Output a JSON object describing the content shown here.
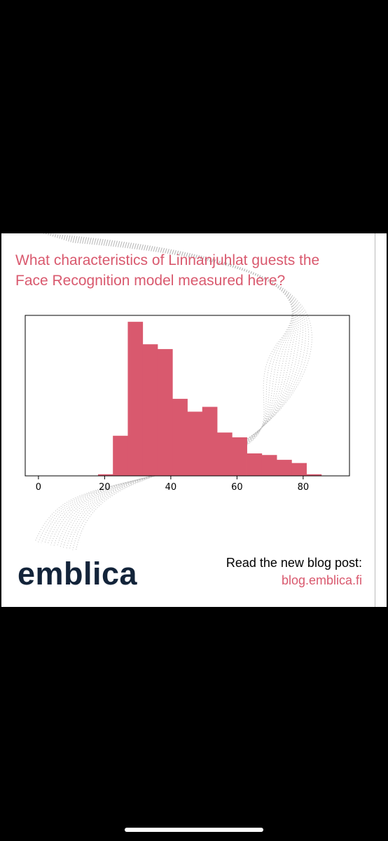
{
  "headline": {
    "line1": "What characteristics of Linnanjuhlat guests the",
    "line2": "Face Recognition model measured here?"
  },
  "brand": {
    "logo_text": "emblica"
  },
  "cta": {
    "text": "Read the new blog post:",
    "link": "blog.emblica.fi"
  },
  "colors": {
    "accent": "#d9596e",
    "logo": "#13243a",
    "background": "#ffffff",
    "frame": "#000000"
  },
  "chart_data": {
    "type": "bar",
    "title": "",
    "xlabel": "",
    "ylabel": "",
    "xlim": [
      -4,
      94
    ],
    "ylim": [
      0,
      100
    ],
    "xticks": [
      0,
      20,
      40,
      60,
      80
    ],
    "bins": [
      {
        "x0": 18.0,
        "x1": 22.5,
        "value": 1
      },
      {
        "x0": 22.5,
        "x1": 27.0,
        "value": 25
      },
      {
        "x0": 27.0,
        "x1": 31.5,
        "value": 96
      },
      {
        "x0": 31.5,
        "x1": 36.0,
        "value": 82
      },
      {
        "x0": 36.0,
        "x1": 40.5,
        "value": 79
      },
      {
        "x0": 40.5,
        "x1": 45.0,
        "value": 48
      },
      {
        "x0": 45.0,
        "x1": 49.5,
        "value": 40
      },
      {
        "x0": 49.5,
        "x1": 54.0,
        "value": 43
      },
      {
        "x0": 54.0,
        "x1": 58.5,
        "value": 27
      },
      {
        "x0": 58.5,
        "x1": 63.0,
        "value": 24
      },
      {
        "x0": 63.0,
        "x1": 67.5,
        "value": 14
      },
      {
        "x0": 67.5,
        "x1": 72.0,
        "value": 13
      },
      {
        "x0": 72.0,
        "x1": 76.5,
        "value": 10
      },
      {
        "x0": 76.5,
        "x1": 81.0,
        "value": 8
      },
      {
        "x0": 81.0,
        "x1": 85.5,
        "value": 1
      }
    ],
    "bar_color": "#d9596e",
    "grid": false
  }
}
